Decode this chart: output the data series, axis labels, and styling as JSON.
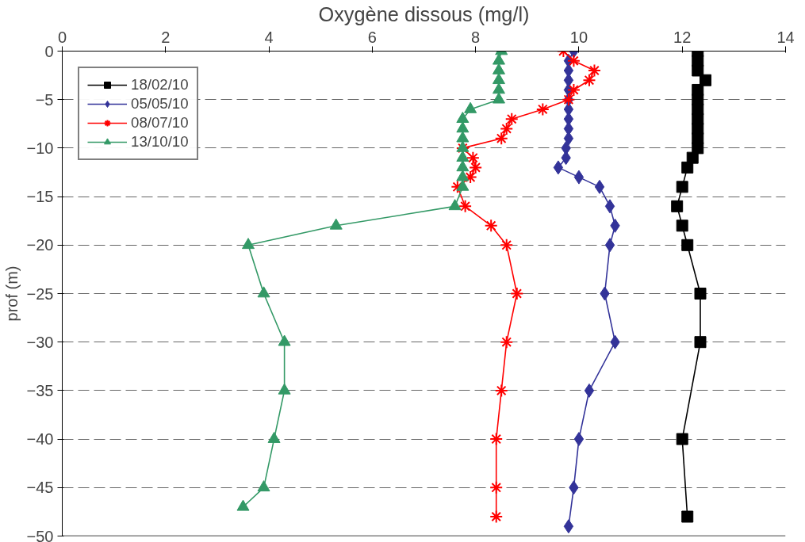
{
  "chart_data": {
    "type": "line",
    "xlabel": "Oxygène dissous (mg/l)",
    "ylabel": "prof (m)",
    "xlim": [
      0,
      14
    ],
    "xticks": [
      0,
      2,
      4,
      6,
      8,
      10,
      12,
      14
    ],
    "ylim": [
      -50,
      0
    ],
    "yticks": [
      0,
      -5,
      -10,
      -15,
      -20,
      -25,
      -30,
      -35,
      -40,
      -45,
      -50
    ],
    "grid": "y",
    "legend": "top left",
    "line_style": "solid",
    "series": [
      {
        "name": "18/02/10",
        "color": "#000000",
        "marker": "square",
        "x": [
          12.3,
          12.3,
          12.3,
          12.45,
          12.3,
          12.3,
          12.3,
          12.3,
          12.3,
          12.3,
          12.3,
          12.2,
          12.1,
          12.0,
          11.9,
          12.0,
          12.1,
          12.35,
          12.35,
          12.0,
          12.1
        ],
        "values": [
          0,
          -1,
          -2,
          -3,
          -4,
          -5,
          -6,
          -7,
          -8,
          -9,
          -10,
          -11,
          -12,
          -14,
          -16,
          -18,
          -20,
          -25,
          -30,
          -40,
          -48
        ]
      },
      {
        "name": "05/05/10",
        "color": "#333399",
        "marker": "diamond",
        "x": [
          9.9,
          9.8,
          9.8,
          9.8,
          9.8,
          9.8,
          9.8,
          9.8,
          9.8,
          9.8,
          9.75,
          9.75,
          9.6,
          10.0,
          10.4,
          10.6,
          10.7,
          10.6,
          10.5,
          10.7,
          10.2,
          10.0,
          9.9,
          9.8
        ],
        "values": [
          0,
          -1,
          -2,
          -3,
          -4,
          -5,
          -6,
          -7,
          -8,
          -9,
          -10,
          -11,
          -12,
          -13,
          -14,
          -16,
          -18,
          -20,
          -25,
          -30,
          -35,
          -40,
          -45,
          -49
        ]
      },
      {
        "name": "08/07/10",
        "color": "#ff0000",
        "marker": "cross",
        "x": [
          9.7,
          9.9,
          10.3,
          10.2,
          9.9,
          9.8,
          9.3,
          8.7,
          8.6,
          8.5,
          7.75,
          7.95,
          8.0,
          7.9,
          7.65,
          7.8,
          8.3,
          8.6,
          8.8,
          8.6,
          8.5,
          8.4,
          8.4,
          8.4
        ],
        "values": [
          0,
          -1,
          -2,
          -3,
          -4,
          -5,
          -6,
          -7,
          -8,
          -9,
          -10,
          -11,
          -12,
          -13,
          -14,
          -16,
          -18,
          -20,
          -25,
          -30,
          -35,
          -40,
          -45,
          -48
        ]
      },
      {
        "name": "13/10/10",
        "color": "#339966",
        "marker": "triangle",
        "x": [
          8.5,
          8.45,
          8.45,
          8.45,
          8.45,
          8.45,
          7.9,
          7.75,
          7.75,
          7.75,
          7.75,
          7.75,
          7.75,
          7.75,
          7.75,
          7.6,
          5.3,
          3.6,
          3.9,
          4.3,
          4.3,
          4.1,
          3.9,
          3.5
        ],
        "values": [
          0,
          -1,
          -2,
          -3,
          -4,
          -5,
          -6,
          -7,
          -8,
          -9,
          -10,
          -11,
          -12,
          -13,
          -14,
          -16,
          -18,
          -20,
          -25,
          -30,
          -35,
          -40,
          -45,
          -47
        ]
      }
    ]
  }
}
